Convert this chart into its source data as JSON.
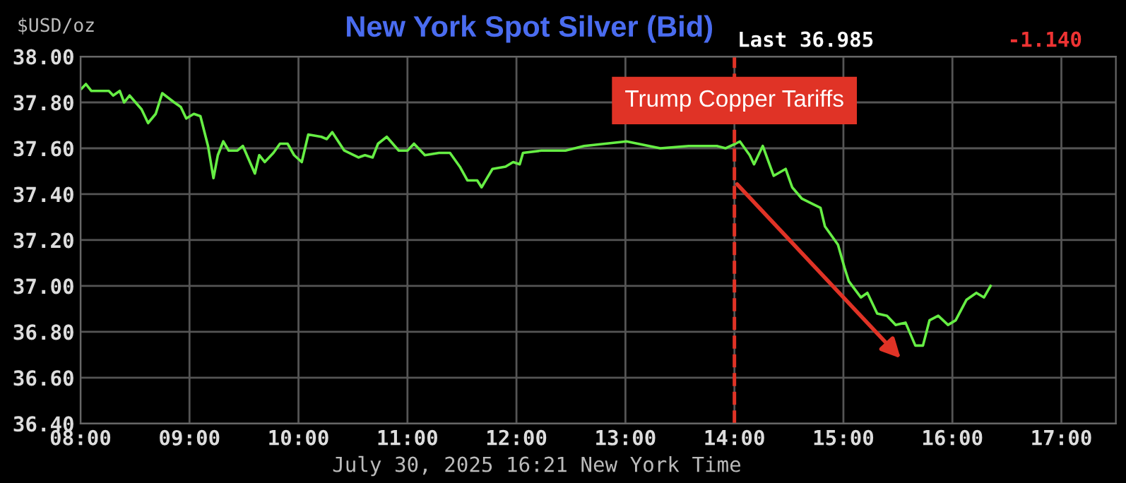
{
  "chart_data": {
    "type": "line",
    "title": "New York Spot Silver (Bid)",
    "ylabel": "$USD/oz",
    "annotations": [
      "Last 36.985",
      "-1.140",
      "July 30, 2025 16:21 New York Time"
    ],
    "series": [
      {
        "color": "#66ee44",
        "x": [
          8.01,
          8.05,
          8.1,
          8.26,
          8.3,
          8.36,
          8.4,
          8.45,
          8.56,
          8.62,
          8.69,
          8.75,
          8.86,
          8.92,
          8.97,
          9.04,
          9.1,
          9.17,
          9.22,
          9.26,
          9.31,
          9.36,
          9.44,
          9.49,
          9.6,
          9.64,
          9.69,
          9.77,
          9.83,
          9.9,
          9.96,
          10.03,
          10.09,
          10.21,
          10.26,
          10.31,
          10.42,
          10.55,
          10.61,
          10.68,
          10.73,
          10.81,
          10.92,
          11.0,
          11.06,
          11.16,
          11.29,
          11.39,
          11.48,
          11.55,
          11.64,
          11.68,
          11.78,
          11.9,
          11.97,
          12.03,
          12.06,
          12.23,
          12.35,
          12.45,
          12.62,
          13.01,
          13.32,
          13.58,
          13.84,
          13.92,
          14.01,
          14.05,
          14.14,
          14.18,
          14.26,
          14.36,
          14.47,
          14.53,
          14.62,
          14.79,
          14.83,
          14.95,
          15.01,
          15.05,
          15.16,
          15.22,
          15.31,
          15.4,
          15.48,
          15.57,
          15.66,
          15.73,
          15.79,
          15.87,
          15.96,
          16.03,
          16.13,
          16.22,
          16.29,
          16.35
        ],
        "values": [
          37.86,
          37.88,
          37.85,
          37.85,
          37.83,
          37.85,
          37.8,
          37.83,
          37.77,
          37.71,
          37.75,
          37.84,
          37.8,
          37.78,
          37.73,
          37.75,
          37.74,
          37.61,
          37.47,
          37.57,
          37.63,
          37.59,
          37.59,
          37.61,
          37.49,
          37.57,
          37.54,
          37.58,
          37.62,
          37.62,
          37.57,
          37.54,
          37.66,
          37.65,
          37.64,
          37.67,
          37.59,
          37.56,
          37.57,
          37.56,
          37.62,
          37.65,
          37.59,
          37.59,
          37.62,
          37.57,
          37.58,
          37.58,
          37.52,
          37.46,
          37.46,
          37.43,
          37.51,
          37.52,
          37.54,
          37.53,
          37.58,
          37.59,
          37.59,
          37.59,
          37.61,
          37.63,
          37.6,
          37.61,
          37.61,
          37.6,
          37.62,
          37.63,
          37.57,
          37.53,
          37.61,
          37.48,
          37.51,
          37.43,
          37.38,
          37.34,
          37.26,
          37.18,
          37.08,
          37.02,
          36.95,
          36.97,
          36.88,
          36.87,
          36.83,
          36.84,
          36.74,
          36.74,
          36.85,
          36.87,
          36.83,
          36.85,
          36.94,
          36.97,
          36.95,
          37.0
        ]
      }
    ],
    "xlim": [
      8,
      17.5
    ],
    "xticks": [
      {
        "value": 8,
        "label": "08:00"
      },
      {
        "value": 9,
        "label": "09:00"
      },
      {
        "value": 10,
        "label": "10:00"
      },
      {
        "value": 11,
        "label": "11:00"
      },
      {
        "value": 12,
        "label": "12:00"
      },
      {
        "value": 13,
        "label": "13:00"
      },
      {
        "value": 14,
        "label": "14:00"
      },
      {
        "value": 15,
        "label": "15:00"
      },
      {
        "value": 16,
        "label": "16:00"
      },
      {
        "value": 17,
        "label": "17:00"
      }
    ],
    "ylim": [
      36.4,
      38.0
    ],
    "yticks": [
      {
        "value": 36.4,
        "label": "36.40"
      },
      {
        "value": 36.6,
        "label": "36.60"
      },
      {
        "value": 36.8,
        "label": "36.80"
      },
      {
        "value": 37.0,
        "label": "37.00"
      },
      {
        "value": 37.2,
        "label": "37.20"
      },
      {
        "value": 37.4,
        "label": "37.40"
      },
      {
        "value": 37.6,
        "label": "37.60"
      },
      {
        "value": 37.8,
        "label": "37.80"
      },
      {
        "value": 38.0,
        "label": "38.00"
      }
    ],
    "grid": true,
    "legend": false,
    "marker": "none",
    "line_style": "solid",
    "ref_lines": [
      {
        "axis": "x",
        "value": 14,
        "label": "Trump Copper Tariffs",
        "color": "#e03326",
        "line_style": "dashed"
      }
    ]
  }
}
